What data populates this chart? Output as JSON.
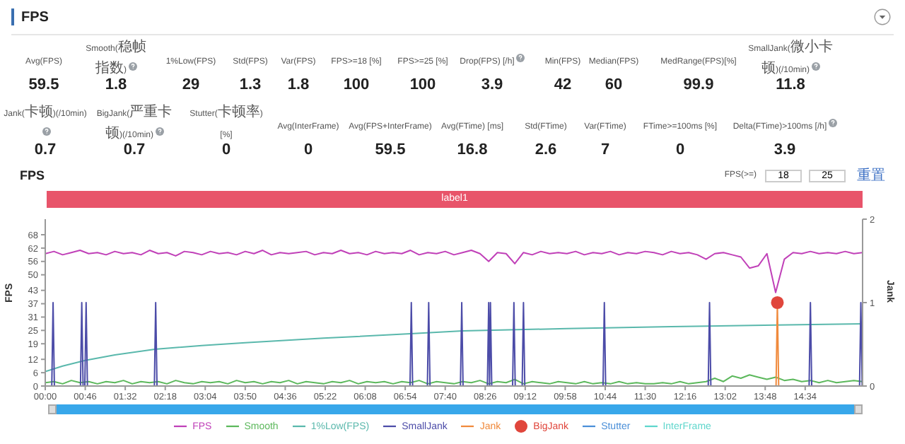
{
  "chart_data": [
    {
      "type": "other",
      "title": "FPS",
      "data_labels": true,
      "categories": [
        "Avg(FPS)",
        "Smooth(稳帧指数)",
        "1%Low(FPS)",
        "Std(FPS)",
        "Var(FPS)",
        "FPS>=18 [%]",
        "FPS>=25 [%]",
        "Drop(FPS) [/h]",
        "Min(FPS)",
        "Median(FPS)",
        "MedRange(FPS)[%]",
        "SmallJank(微小卡顿)(/10min)",
        "Jank(卡顿)(/10min)",
        "BigJank(严重卡顿)(/10min)",
        "Stutter(卡顿率) [%]",
        "Avg(InterFrame)",
        "Avg(FPS+InterFrame)",
        "Avg(FTime) [ms]",
        "Std(FTime)",
        "Var(FTime)",
        "FTime>=100ms [%]",
        "Delta(FTime)>100ms [/h]"
      ],
      "values": [
        59.5,
        1.8,
        29,
        1.3,
        1.8,
        100,
        100,
        3.9,
        42,
        60,
        99.9,
        11.8,
        0.7,
        0.7,
        0,
        0,
        59.5,
        16.8,
        2.6,
        7,
        0,
        3.9
      ]
    },
    {
      "type": "line",
      "title": "FPS",
      "ylabel": "FPS",
      "y2label": "Jank",
      "legend": "bottom",
      "annotations": [
        "label1",
        "FPS(>=)",
        "18",
        "25",
        "重置"
      ],
      "x": [
        0,
        10,
        20,
        30,
        40,
        50,
        60,
        70,
        80,
        90,
        100,
        110,
        120,
        130,
        140,
        150,
        160,
        170,
        180,
        190,
        200,
        210,
        220,
        230,
        240,
        250,
        260,
        270,
        280,
        290,
        300,
        310,
        320,
        330,
        340,
        350,
        360,
        370,
        380,
        390,
        400,
        410,
        420,
        430,
        440,
        450,
        460,
        470,
        480,
        490,
        500,
        510,
        520,
        530,
        540,
        550,
        560,
        570,
        580,
        590,
        600,
        610,
        620,
        630,
        640,
        650,
        660,
        670,
        680,
        690,
        700,
        710,
        720,
        730,
        740,
        750,
        760,
        770,
        780,
        790,
        800,
        810,
        820,
        830,
        840,
        850,
        860,
        870,
        880,
        890,
        900,
        910,
        920,
        930,
        940
      ],
      "xlim": [
        0,
        940
      ],
      "xticks": [
        {
          "value": 0,
          "label": "00:00"
        },
        {
          "value": 46,
          "label": "00:46"
        },
        {
          "value": 92,
          "label": "01:32"
        },
        {
          "value": 138,
          "label": "02:18"
        },
        {
          "value": 184,
          "label": "03:04"
        },
        {
          "value": 230,
          "label": "03:50"
        },
        {
          "value": 276,
          "label": "04:36"
        },
        {
          "value": 322,
          "label": "05:22"
        },
        {
          "value": 368,
          "label": "06:08"
        },
        {
          "value": 414,
          "label": "06:54"
        },
        {
          "value": 460,
          "label": "07:40"
        },
        {
          "value": 506,
          "label": "08:26"
        },
        {
          "value": 552,
          "label": "09:12"
        },
        {
          "value": 598,
          "label": "09:58"
        },
        {
          "value": 644,
          "label": "10:44"
        },
        {
          "value": 690,
          "label": "11:30"
        },
        {
          "value": 736,
          "label": "12:16"
        },
        {
          "value": 782,
          "label": "13:02"
        },
        {
          "value": 828,
          "label": "13:48"
        },
        {
          "value": 874,
          "label": "14:34"
        }
      ],
      "ylim": [
        0,
        75
      ],
      "yticks": [
        0,
        6,
        12,
        19,
        25,
        31,
        37,
        43,
        50,
        56,
        62,
        68
      ],
      "y2lim": [
        0,
        2
      ],
      "y2ticks": [
        0,
        1,
        2
      ],
      "series": [
        {
          "name": "FPS",
          "color": "#c040b8",
          "values": [
            59.5,
            60.5,
            59,
            60,
            61,
            59.5,
            60,
            59,
            60.5,
            59.5,
            60,
            59,
            61,
            59.5,
            60,
            58.5,
            60.5,
            60,
            59,
            60.5,
            59.5,
            60,
            59,
            60.5,
            59.5,
            61,
            59,
            60,
            59.5,
            60,
            60.5,
            59,
            60,
            59.5,
            61,
            59.5,
            60,
            59,
            60.5,
            59.5,
            60,
            59.5,
            61,
            59,
            60,
            59.5,
            60.5,
            59,
            60,
            61,
            59.5,
            56,
            60,
            59.5,
            55,
            60,
            59,
            60.5,
            59.5,
            60,
            59.5,
            60.5,
            59,
            60,
            59.5,
            60.5,
            59,
            60,
            59.5,
            60.5,
            60,
            59,
            60.5,
            59.5,
            60,
            59,
            57,
            59.5,
            60,
            59,
            58,
            53,
            54,
            59.5,
            42,
            57,
            60,
            59.5,
            60.5,
            59.5,
            60,
            59.5,
            60.5,
            59.5,
            60
          ]
        },
        {
          "name": "Smooth",
          "color": "#5cb85c",
          "values": [
            1.5,
            2,
            1,
            2.5,
            1.5,
            2,
            1,
            2,
            1.5,
            2.5,
            1,
            2,
            1.5,
            2,
            1,
            2.5,
            1.5,
            1,
            2,
            1.5,
            2,
            1,
            2.5,
            1.5,
            2,
            1,
            2,
            1.5,
            2.5,
            1,
            2,
            1.5,
            1,
            2,
            1.5,
            2.5,
            1,
            2,
            1.5,
            2,
            1,
            2,
            1.5,
            2.5,
            1,
            2,
            1.5,
            1,
            2,
            1.5,
            2.5,
            1,
            2,
            1.5,
            3,
            1,
            2,
            1.5,
            1,
            2,
            1.5,
            1,
            2,
            1,
            1.5,
            1,
            2,
            1,
            1.5,
            1,
            1,
            1.5,
            1,
            2,
            1,
            1.5,
            2,
            3.5,
            2,
            4.5,
            3.5,
            5,
            4,
            3,
            4,
            2.5,
            3,
            2,
            2.5,
            1.5,
            2.5,
            1.5,
            2,
            2.5,
            2
          ]
        },
        {
          "name": "1%Low(FPS)",
          "color": "#5ab8ac",
          "x": [
            0,
            20,
            46,
            80,
            126,
            180,
            230,
            320,
            420,
            480,
            600,
            720,
            840,
            940
          ],
          "values": [
            6.5,
            9,
            11.5,
            14,
            16.5,
            18.2,
            19.5,
            21.5,
            23.5,
            24.8,
            25.8,
            26.7,
            27.4,
            28
          ]
        },
        {
          "name": "SmallJank",
          "color": "#4c4ca8",
          "axis": "y2",
          "x": [
            0,
            7.5,
            9,
            10.5,
            40.5,
            42,
            43.5,
            45.5,
            47,
            48.5,
            125.5,
            127,
            128.5,
            419.5,
            421,
            422.5,
            439.5,
            441,
            442.5,
            477.5,
            479,
            480.5,
            508.5,
            510,
            511,
            512,
            513.5,
            537.5,
            539,
            540.5,
            548.5,
            550,
            551.5,
            641.5,
            643,
            644.5,
            762.5,
            764,
            765.5,
            878.5,
            880,
            881.5,
            936.5,
            938,
            939.5,
            940
          ],
          "values": [
            0,
            0,
            1,
            0,
            0,
            1,
            0,
            0,
            1,
            0,
            0,
            1,
            0,
            0,
            1,
            0,
            0,
            1,
            0,
            0,
            1,
            0,
            0,
            1,
            0,
            1,
            0,
            0,
            1,
            0,
            0,
            1,
            0,
            0,
            1,
            0,
            0,
            1,
            0,
            0,
            1,
            0,
            0,
            1,
            0,
            0
          ]
        },
        {
          "name": "Jank",
          "color": "#f08a3c",
          "axis": "y2",
          "x": [
            840.5,
            842,
            843.5
          ],
          "values": [
            0,
            1,
            0
          ]
        },
        {
          "name": "BigJank",
          "type": "scatter",
          "marker": "circle",
          "color": "#e0463c",
          "axis": "y2",
          "x": [
            842
          ],
          "values": [
            1
          ]
        },
        {
          "name": "Stutter",
          "color": "#4a8fd8",
          "axis": "y2",
          "values": [
            null,
            null,
            null,
            null,
            null,
            null,
            null,
            null,
            null,
            null,
            null,
            null,
            null,
            null,
            null,
            null,
            null,
            null,
            null,
            null,
            null,
            null,
            null,
            null,
            null,
            null,
            null,
            null,
            null,
            null,
            null,
            null,
            null,
            null,
            null,
            null,
            null,
            null,
            null,
            null,
            null,
            null,
            null,
            null,
            null,
            null,
            null,
            null,
            null,
            null,
            null,
            null,
            null,
            null,
            null,
            null,
            null,
            null,
            null,
            null,
            null,
            null,
            null,
            null,
            null,
            null,
            null,
            null,
            null,
            null,
            null,
            null,
            null,
            null,
            null,
            null,
            null,
            null,
            null,
            null,
            null,
            null,
            null,
            null,
            null,
            null,
            null,
            null,
            null,
            null,
            null,
            null,
            null,
            null,
            null
          ]
        },
        {
          "name": "InterFrame",
          "color": "#5fd6cc",
          "axis": "y2",
          "values": [
            null,
            null,
            null,
            null,
            null,
            null,
            null,
            null,
            null,
            null,
            null,
            null,
            null,
            null,
            null,
            null,
            null,
            null,
            null,
            null,
            null,
            null,
            null,
            null,
            null,
            null,
            null,
            null,
            null,
            null,
            null,
            null,
            null,
            null,
            null,
            null,
            null,
            null,
            null,
            null,
            null,
            null,
            null,
            null,
            null,
            null,
            null,
            null,
            null,
            null,
            null,
            null,
            null,
            null,
            null,
            null,
            null,
            null,
            null,
            null,
            null,
            null,
            null,
            null,
            null,
            null,
            null,
            null,
            null,
            null,
            null,
            null,
            null,
            null,
            null,
            null,
            null,
            null,
            null,
            null,
            null,
            null,
            null,
            null,
            null,
            null,
            null,
            null,
            null,
            null,
            null,
            null,
            null,
            null,
            null
          ]
        }
      ]
    }
  ]
}
